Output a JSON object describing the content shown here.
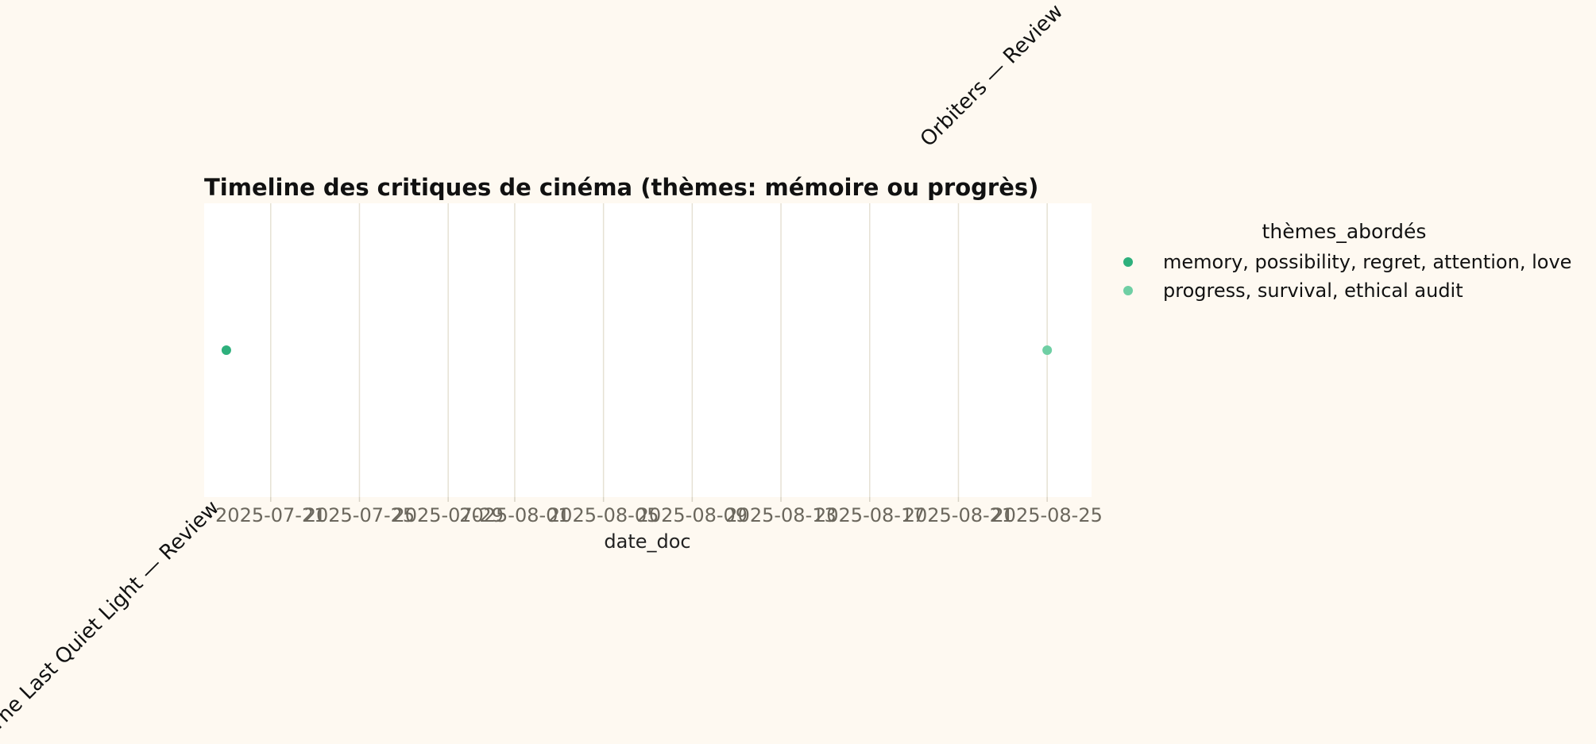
{
  "chart_data": {
    "type": "scatter",
    "title": "Timeline des critiques de cinéma (thèmes: mémoire ou progrès)",
    "xlabel": "date_doc",
    "ylabel": "",
    "x_ticks": [
      "2025-07-21",
      "2025-07-25",
      "2025-07-29",
      "2025-08-01",
      "2025-08-05",
      "2025-08-09",
      "2025-08-13",
      "2025-08-17",
      "2025-08-21",
      "2025-08-25"
    ],
    "xlim": [
      "2025-07-18",
      "2025-08-27"
    ],
    "grid": "vertical",
    "legend": {
      "title": "thèmes_abordés",
      "placement": "outside-right"
    },
    "series": [
      {
        "name": "memory, possibility, regret, attention, love",
        "color": "#2eb07c",
        "points": [
          {
            "x": "2025-07-19",
            "label": "The Last Quiet Light — Review"
          }
        ]
      },
      {
        "name": "progress, survival, ethical audit",
        "color": "#6fcfa4",
        "points": [
          {
            "x": "2025-08-25",
            "label": "Orbiters — Review"
          }
        ]
      }
    ]
  }
}
